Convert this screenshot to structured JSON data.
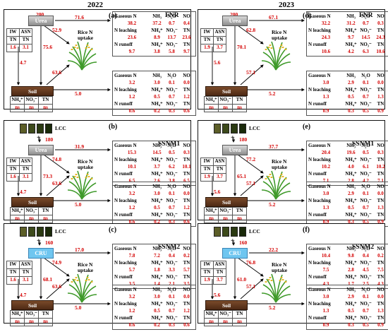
{
  "years": [
    "2022",
    "2023"
  ],
  "common": {
    "urea": "Urea",
    "cru": "CRU",
    "soil": "Soil",
    "rice_uptake": "Rice N uptake",
    "lcc": "LCC",
    "plus": "+",
    "irr_headers": [
      "IW",
      "ASN"
    ],
    "tn_label": "TN",
    "soil_headers": [
      "NH₄⁺",
      "NO₃⁻",
      "TN"
    ],
    "ns": "ns",
    "top_headers": [
      "",
      "NH₃",
      "N₂O",
      "NO"
    ],
    "mid_headers": [
      "",
      "NH₄⁺",
      "NO₃⁻",
      "TN"
    ],
    "runoff_headers": [
      "",
      "NH₄⁺",
      "NO₃⁻",
      "TN"
    ],
    "rows": [
      "Gaseous N",
      "N leaching",
      "N runoff"
    ]
  },
  "panels": [
    {
      "label": "(a)",
      "name": "FNR",
      "source": "urea",
      "lcc": false,
      "input": "200",
      "irr": [
        "1.6",
        "3.1"
      ],
      "flux": {
        "gas": "71.6",
        "uptake": "52.9",
        "soil": "75.6",
        "soil_down": "4.7",
        "soil_up": "63.6",
        "soil_right": "5.0"
      },
      "top": {
        "gas": [
          "38.2",
          "37.2",
          "0.7",
          "0.4"
        ],
        "leach": [
          "23.6",
          "8.9",
          "13.7",
          "23.6"
        ],
        "runoff": [
          "9.7",
          "3.8",
          "5.8",
          "9.7"
        ]
      },
      "bottom": {
        "gas": [
          "3.2",
          "3.0",
          "0.1",
          "0.0"
        ],
        "leach": [
          "1.2",
          "0.5",
          "0.7",
          "1.2"
        ],
        "runoff": [
          "0.6",
          "0.2",
          "0.3",
          "0.6"
        ]
      }
    },
    {
      "label": "(d)",
      "name": "FNR",
      "source": "urea",
      "lcc": false,
      "input": "200",
      "irr": [
        "1.9",
        "3.7"
      ],
      "flux": {
        "gas": "67.1",
        "uptake": "62.8",
        "soil": "70.1",
        "soil_down": "5.6",
        "soil_up": "57.1",
        "soil_right": "5.2"
      },
      "top": {
        "gas": [
          "32.2",
          "31.2",
          "0.7",
          "0.3"
        ],
        "leach": [
          "24.3",
          "9.7",
          "14.5",
          "24.3"
        ],
        "runoff": [
          "10.6",
          "4.2",
          "6.3",
          "10.6"
        ]
      },
      "bottom": {
        "gas": [
          "3.0",
          "2.9",
          "0.1",
          "0.0"
        ],
        "leach": [
          "1.3",
          "0.5",
          "0.7",
          "1.3"
        ],
        "runoff": [
          "0.9",
          "0.3",
          "0.5",
          "0.9"
        ]
      }
    },
    {
      "label": "(b)",
      "name": "SSNM1",
      "source": "urea",
      "lcc": true,
      "input": "180",
      "irr": [
        "1.6",
        "3.1"
      ],
      "flux": {
        "gas": "31.9",
        "uptake": "74.8",
        "soil": "73.3",
        "soil_down": "4.7",
        "soil_up": "63.6",
        "soil_right": "5.0"
      },
      "top": {
        "gas": [
          "15.3",
          "14.5",
          "0.5",
          "0.3"
        ],
        "leach": [
          "10.1",
          "3.7",
          "6.2",
          "10.1"
        ],
        "runoff": [
          "6.5",
          "2.6",
          "3.8",
          "6.5"
        ]
      },
      "bottom": {
        "gas": [
          "3.2",
          "3.0",
          "0.1",
          "0.0"
        ],
        "leach": [
          "1.2",
          "0.5",
          "0.7",
          "1.2"
        ],
        "runoff": [
          "0.6",
          "0.2",
          "0.3",
          "0.6"
        ]
      }
    },
    {
      "label": "(e)",
      "name": "SSNM1",
      "source": "urea",
      "lcc": true,
      "input": "180",
      "irr": [
        "1.9",
        "3.7"
      ],
      "flux": {
        "gas": "37.7",
        "uptake": "77.2",
        "soil": "65.1",
        "soil_down": "5.6",
        "soil_up": "57.1",
        "soil_right": "5.2"
      },
      "top": {
        "gas": [
          "20.4",
          "19.6",
          "0.5",
          "0.3"
        ],
        "leach": [
          "10.2",
          "4.0",
          "6.1",
          "10.2"
        ],
        "runoff": [
          "7.1",
          "2.8",
          "4.2",
          "7.1"
        ]
      },
      "bottom": {
        "gas": [
          "3.0",
          "2.9",
          "0.1",
          "0.0"
        ],
        "leach": [
          "1.3",
          "0.5",
          "0.7",
          "1.3"
        ],
        "runoff": [
          "0.9",
          "0.3",
          "0.5",
          "0.9"
        ]
      }
    },
    {
      "label": "(c)",
      "name": "SSNM2",
      "source": "cru",
      "lcc": true,
      "input": "160",
      "irr": [
        "1.6",
        "3.1"
      ],
      "flux": {
        "gas": "17.0",
        "uptake": "74.9",
        "soil": "68.1",
        "soil_down": "4.7",
        "soil_up": "63.6",
        "soil_right": "5.0"
      },
      "top": {
        "gas": [
          "7.8",
          "7.2",
          "0.4",
          "0.2"
        ],
        "leach": [
          "5.7",
          "1.8",
          "3.3",
          "5.7"
        ],
        "runoff": [
          "3.5",
          "1.4",
          "2.1",
          "3.5"
        ]
      },
      "bottom": {
        "gas": [
          "3.2",
          "3.0",
          "0.1",
          "0.0"
        ],
        "leach": [
          "1.2",
          "0.5",
          "0.7",
          "1.2"
        ],
        "runoff": [
          "0.6",
          "0.2",
          "0.3",
          "0.6"
        ]
      }
    },
    {
      "label": "(f)",
      "name": "SSNM2",
      "source": "cru",
      "lcc": true,
      "input": "160",
      "irr": [
        "1.9",
        "3.7"
      ],
      "flux": {
        "gas": "22.2",
        "uptake": "76.8",
        "soil": "61.0",
        "soil_down": "5.6",
        "soil_up": "57.1",
        "soil_right": "5.2"
      },
      "top": {
        "gas": [
          "10.4",
          "9.8",
          "0.4",
          "0.2"
        ],
        "leach": [
          "7.5",
          "2.8",
          "4.5",
          "7.5"
        ],
        "runoff": [
          "4.3",
          "1.7",
          "2.5",
          "4.3"
        ]
      },
      "bottom": {
        "gas": [
          "3.0",
          "2.9",
          "0.1",
          "0.0"
        ],
        "leach": [
          "1.3",
          "0.5",
          "0.7",
          "1.3"
        ],
        "runoff": [
          "0.9",
          "0.3",
          "0.5",
          "0.9"
        ]
      }
    }
  ],
  "colors": {
    "red": "#d40000",
    "lcc": [
      "#5c5e28",
      "#3d4a1b",
      "#2b3a12",
      "#1a2a0a"
    ],
    "cru": "#6fc6f0",
    "soil": "#5a331b"
  }
}
